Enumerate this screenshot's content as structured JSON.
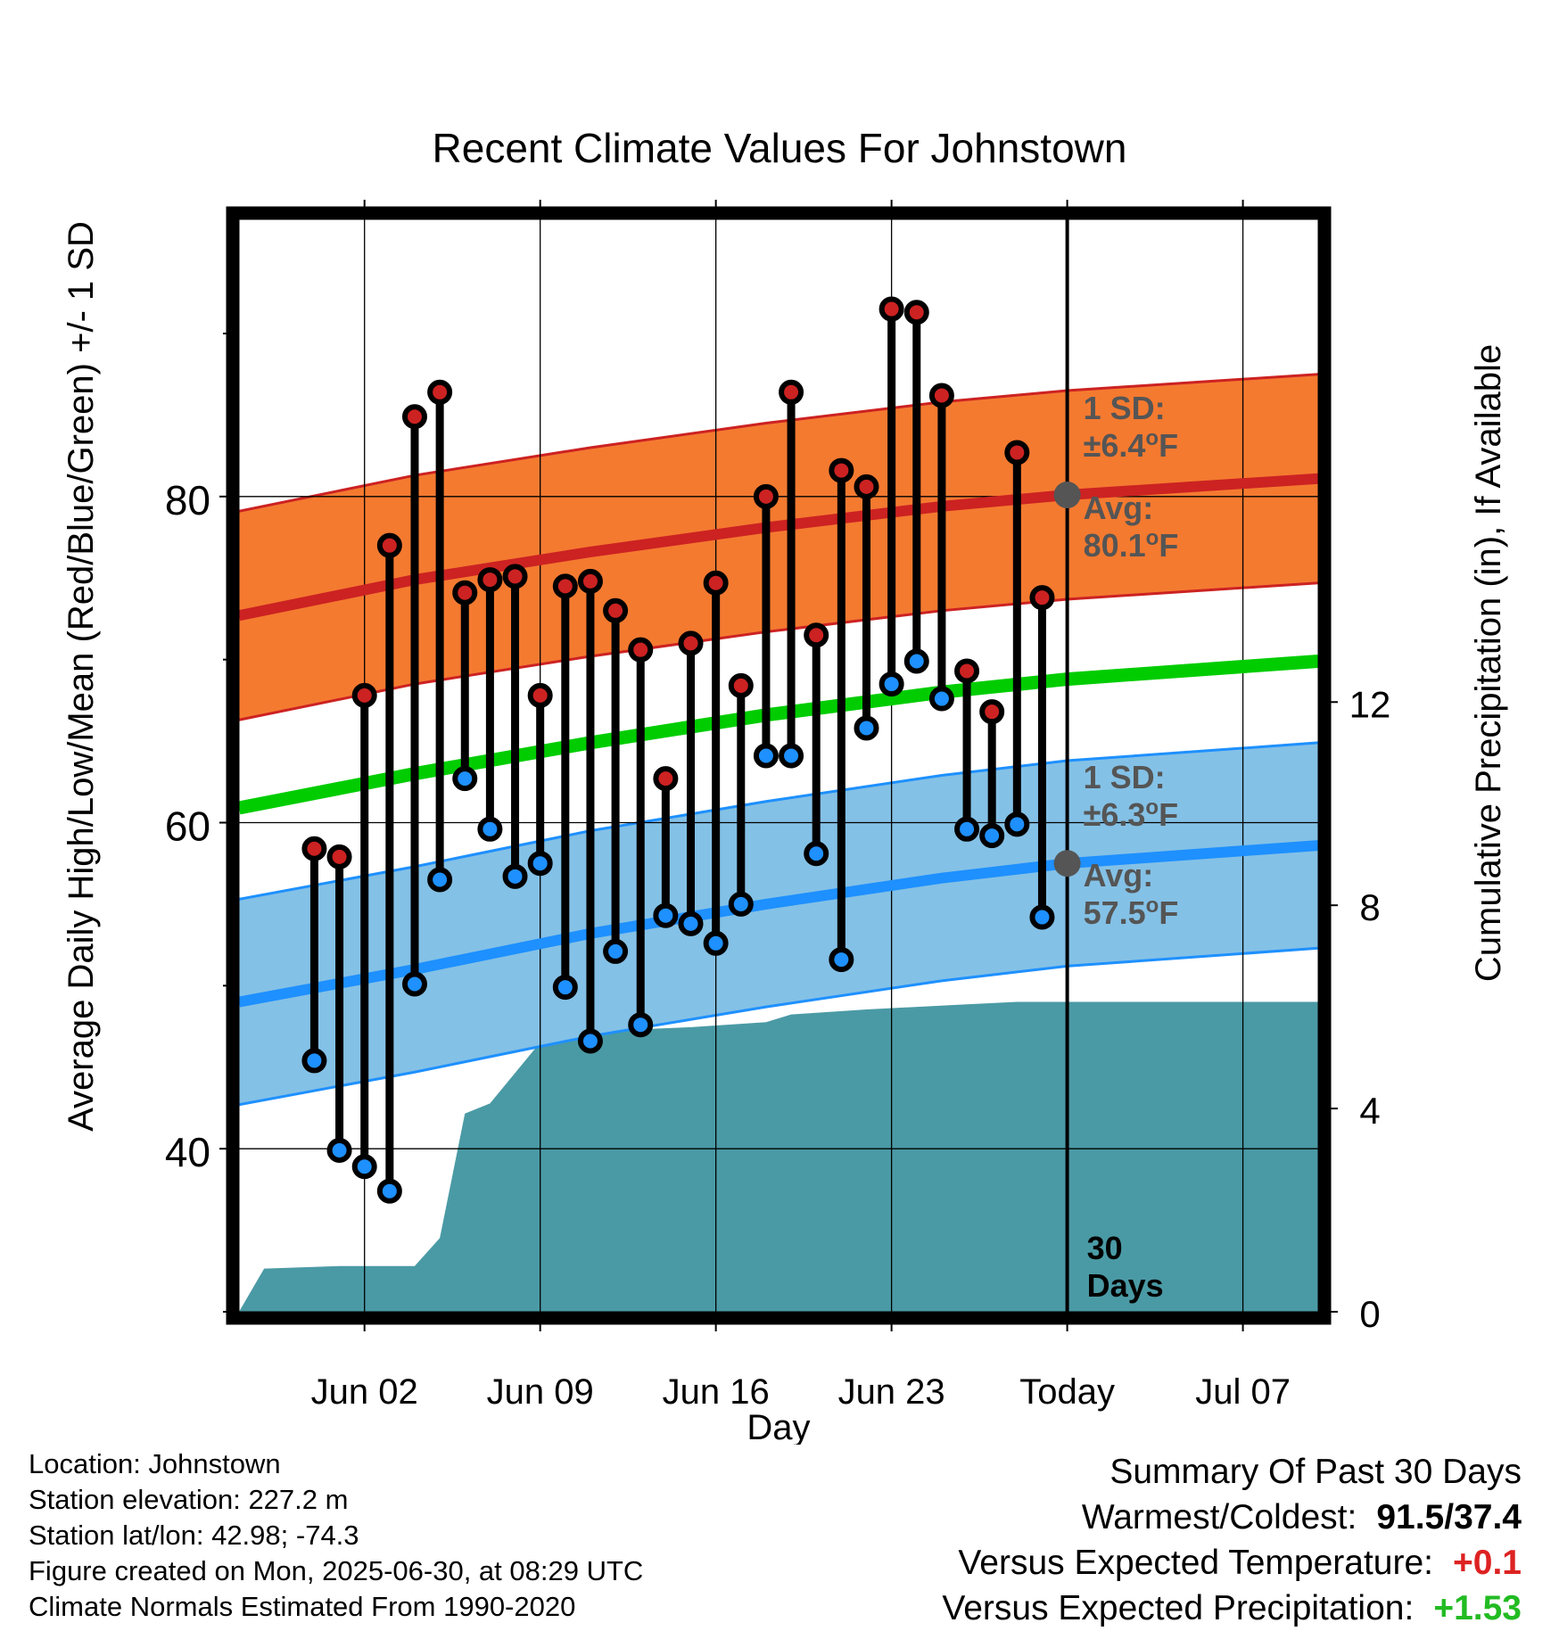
{
  "title": "Recent Climate Values For Johnstown",
  "colors": {
    "high": "#cc2222",
    "low": "#1e90ff",
    "mean": "#00cc00",
    "high_band": "#f47a30",
    "low_band": "#84c1e6",
    "precip": "#4a9aa5",
    "avg_text": "#555555",
    "warm_delta": "#dd2222",
    "wet_delta": "#22bb22"
  },
  "chart_data": {
    "type": "line",
    "title": "Recent Climate Values For Johnstown",
    "xlabel": "Day",
    "ylabel_left": "Average Daily High/Low/Mean (Red/Blue/Green) +/- 1 SD",
    "ylabel_right": "Cumulative Precipitation (in), If Available",
    "x_range": [
      "2025-05-28",
      "2025-07-10"
    ],
    "x_ticks": [
      {
        "date": "2025-06-02",
        "label": "Jun 02"
      },
      {
        "date": "2025-06-09",
        "label": "Jun 09"
      },
      {
        "date": "2025-06-16",
        "label": "Jun 16"
      },
      {
        "date": "2025-06-23",
        "label": "Jun 23"
      },
      {
        "date": "2025-06-30",
        "label": "Today"
      },
      {
        "date": "2025-07-07",
        "label": "Jul 07"
      }
    ],
    "y_left_range": [
      30,
      97
    ],
    "y_left_ticks": [
      40,
      60,
      80
    ],
    "y_left_minor_ticks": [
      30,
      50,
      70,
      90
    ],
    "y_right_range": [
      0,
      21.5
    ],
    "y_right_ticks": [
      0,
      4,
      8,
      12
    ],
    "grid": true,
    "today": "2025-06-30",
    "today_window_label": [
      "30",
      "Days"
    ],
    "daily": [
      {
        "date": "2025-05-31",
        "high": 58.4,
        "low": 45.4
      },
      {
        "date": "2025-06-01",
        "high": 57.9,
        "low": 39.9
      },
      {
        "date": "2025-06-02",
        "high": 67.8,
        "low": 38.9
      },
      {
        "date": "2025-06-03",
        "high": 77.0,
        "low": 37.4
      },
      {
        "date": "2025-06-04",
        "high": 84.9,
        "low": 50.1
      },
      {
        "date": "2025-06-05",
        "high": 86.4,
        "low": 56.5
      },
      {
        "date": "2025-06-06",
        "high": 74.1,
        "low": 62.7
      },
      {
        "date": "2025-06-07",
        "high": 74.9,
        "low": 59.6
      },
      {
        "date": "2025-06-08",
        "high": 75.1,
        "low": 56.7
      },
      {
        "date": "2025-06-09",
        "high": 67.8,
        "low": 57.5
      },
      {
        "date": "2025-06-10",
        "high": 74.5,
        "low": 49.9
      },
      {
        "date": "2025-06-11",
        "high": 74.8,
        "low": 46.6
      },
      {
        "date": "2025-06-12",
        "high": 73.0,
        "low": 52.1
      },
      {
        "date": "2025-06-13",
        "high": 70.6,
        "low": 47.6
      },
      {
        "date": "2025-06-14",
        "high": 62.7,
        "low": 54.3
      },
      {
        "date": "2025-06-15",
        "high": 71.0,
        "low": 53.8
      },
      {
        "date": "2025-06-16",
        "high": 74.7,
        "low": 52.6
      },
      {
        "date": "2025-06-17",
        "high": 68.4,
        "low": 55.0
      },
      {
        "date": "2025-06-18",
        "high": 80.0,
        "low": 64.1
      },
      {
        "date": "2025-06-19",
        "high": 86.4,
        "low": 64.1
      },
      {
        "date": "2025-06-20",
        "high": 71.5,
        "low": 58.1
      },
      {
        "date": "2025-06-21",
        "high": 81.6,
        "low": 51.6
      },
      {
        "date": "2025-06-22",
        "high": 80.6,
        "low": 65.8
      },
      {
        "date": "2025-06-23",
        "high": 91.5,
        "low": 68.5
      },
      {
        "date": "2025-06-24",
        "high": 91.3,
        "low": 69.9
      },
      {
        "date": "2025-06-25",
        "high": 86.2,
        "low": 67.6
      },
      {
        "date": "2025-06-26",
        "high": 69.3,
        "low": 59.6
      },
      {
        "date": "2025-06-27",
        "high": 66.8,
        "low": 59.2
      },
      {
        "date": "2025-06-28",
        "high": 82.7,
        "low": 59.9
      },
      {
        "date": "2025-06-29",
        "high": 73.8,
        "low": 54.2
      }
    ],
    "normals": [
      {
        "date": "2025-05-28",
        "high": 72.7,
        "low": 49.0,
        "mean": 60.9
      },
      {
        "date": "2025-06-04",
        "high": 74.9,
        "low": 51.0,
        "mean": 63.0
      },
      {
        "date": "2025-06-11",
        "high": 76.6,
        "low": 53.2,
        "mean": 64.9
      },
      {
        "date": "2025-06-18",
        "high": 78.1,
        "low": 55.0,
        "mean": 66.6
      },
      {
        "date": "2025-06-25",
        "high": 79.4,
        "low": 56.6,
        "mean": 68.0
      },
      {
        "date": "2025-06-30",
        "high": 80.1,
        "low": 57.5,
        "mean": 68.8
      },
      {
        "date": "2025-07-10",
        "high": 81.1,
        "low": 58.6,
        "mean": 69.9
      }
    ],
    "high_sd": 6.4,
    "low_sd": 6.3,
    "annotations": {
      "high_sd_label": [
        "1 SD:",
        "±6.4°F"
      ],
      "high_avg_label": [
        "Avg:",
        "80.1°F"
      ],
      "low_sd_label": [
        "1 SD:",
        "±6.3°F"
      ],
      "low_avg_label": [
        "Avg:",
        "57.5°F"
      ]
    },
    "cumulative_precip": [
      {
        "date": "2025-05-28",
        "value": 0.0
      },
      {
        "date": "2025-05-29",
        "value": 0.85
      },
      {
        "date": "2025-06-01",
        "value": 0.9
      },
      {
        "date": "2025-06-04",
        "value": 0.9
      },
      {
        "date": "2025-06-05",
        "value": 1.45
      },
      {
        "date": "2025-06-06",
        "value": 3.9
      },
      {
        "date": "2025-06-07",
        "value": 4.1
      },
      {
        "date": "2025-06-09",
        "value": 5.3
      },
      {
        "date": "2025-06-10",
        "value": 5.5
      },
      {
        "date": "2025-06-15",
        "value": 5.6
      },
      {
        "date": "2025-06-18",
        "value": 5.7
      },
      {
        "date": "2025-06-19",
        "value": 5.85
      },
      {
        "date": "2025-06-22",
        "value": 5.95
      },
      {
        "date": "2025-06-26",
        "value": 6.05
      },
      {
        "date": "2025-06-28",
        "value": 6.1
      },
      {
        "date": "2025-07-10",
        "value": 6.1
      }
    ]
  },
  "info": {
    "location": "Location: Johnstown",
    "elevation": "Station elevation: 227.2 m",
    "latlon": "Station lat/lon: 42.98; -74.3",
    "created": "Figure created on Mon, 2025-06-30, at 08:29 UTC",
    "normals": "Climate Normals Estimated From 1990-2020"
  },
  "summary": {
    "heading": "Summary Of Past 30 Days",
    "warm_cold_label": "Warmest/Coldest:",
    "warm_cold_value": "91.5/37.4",
    "temp_label": "Versus Expected Temperature:",
    "temp_value": "+0.1",
    "precip_label": "Versus Expected Precipitation:",
    "precip_value": "+1.53"
  }
}
